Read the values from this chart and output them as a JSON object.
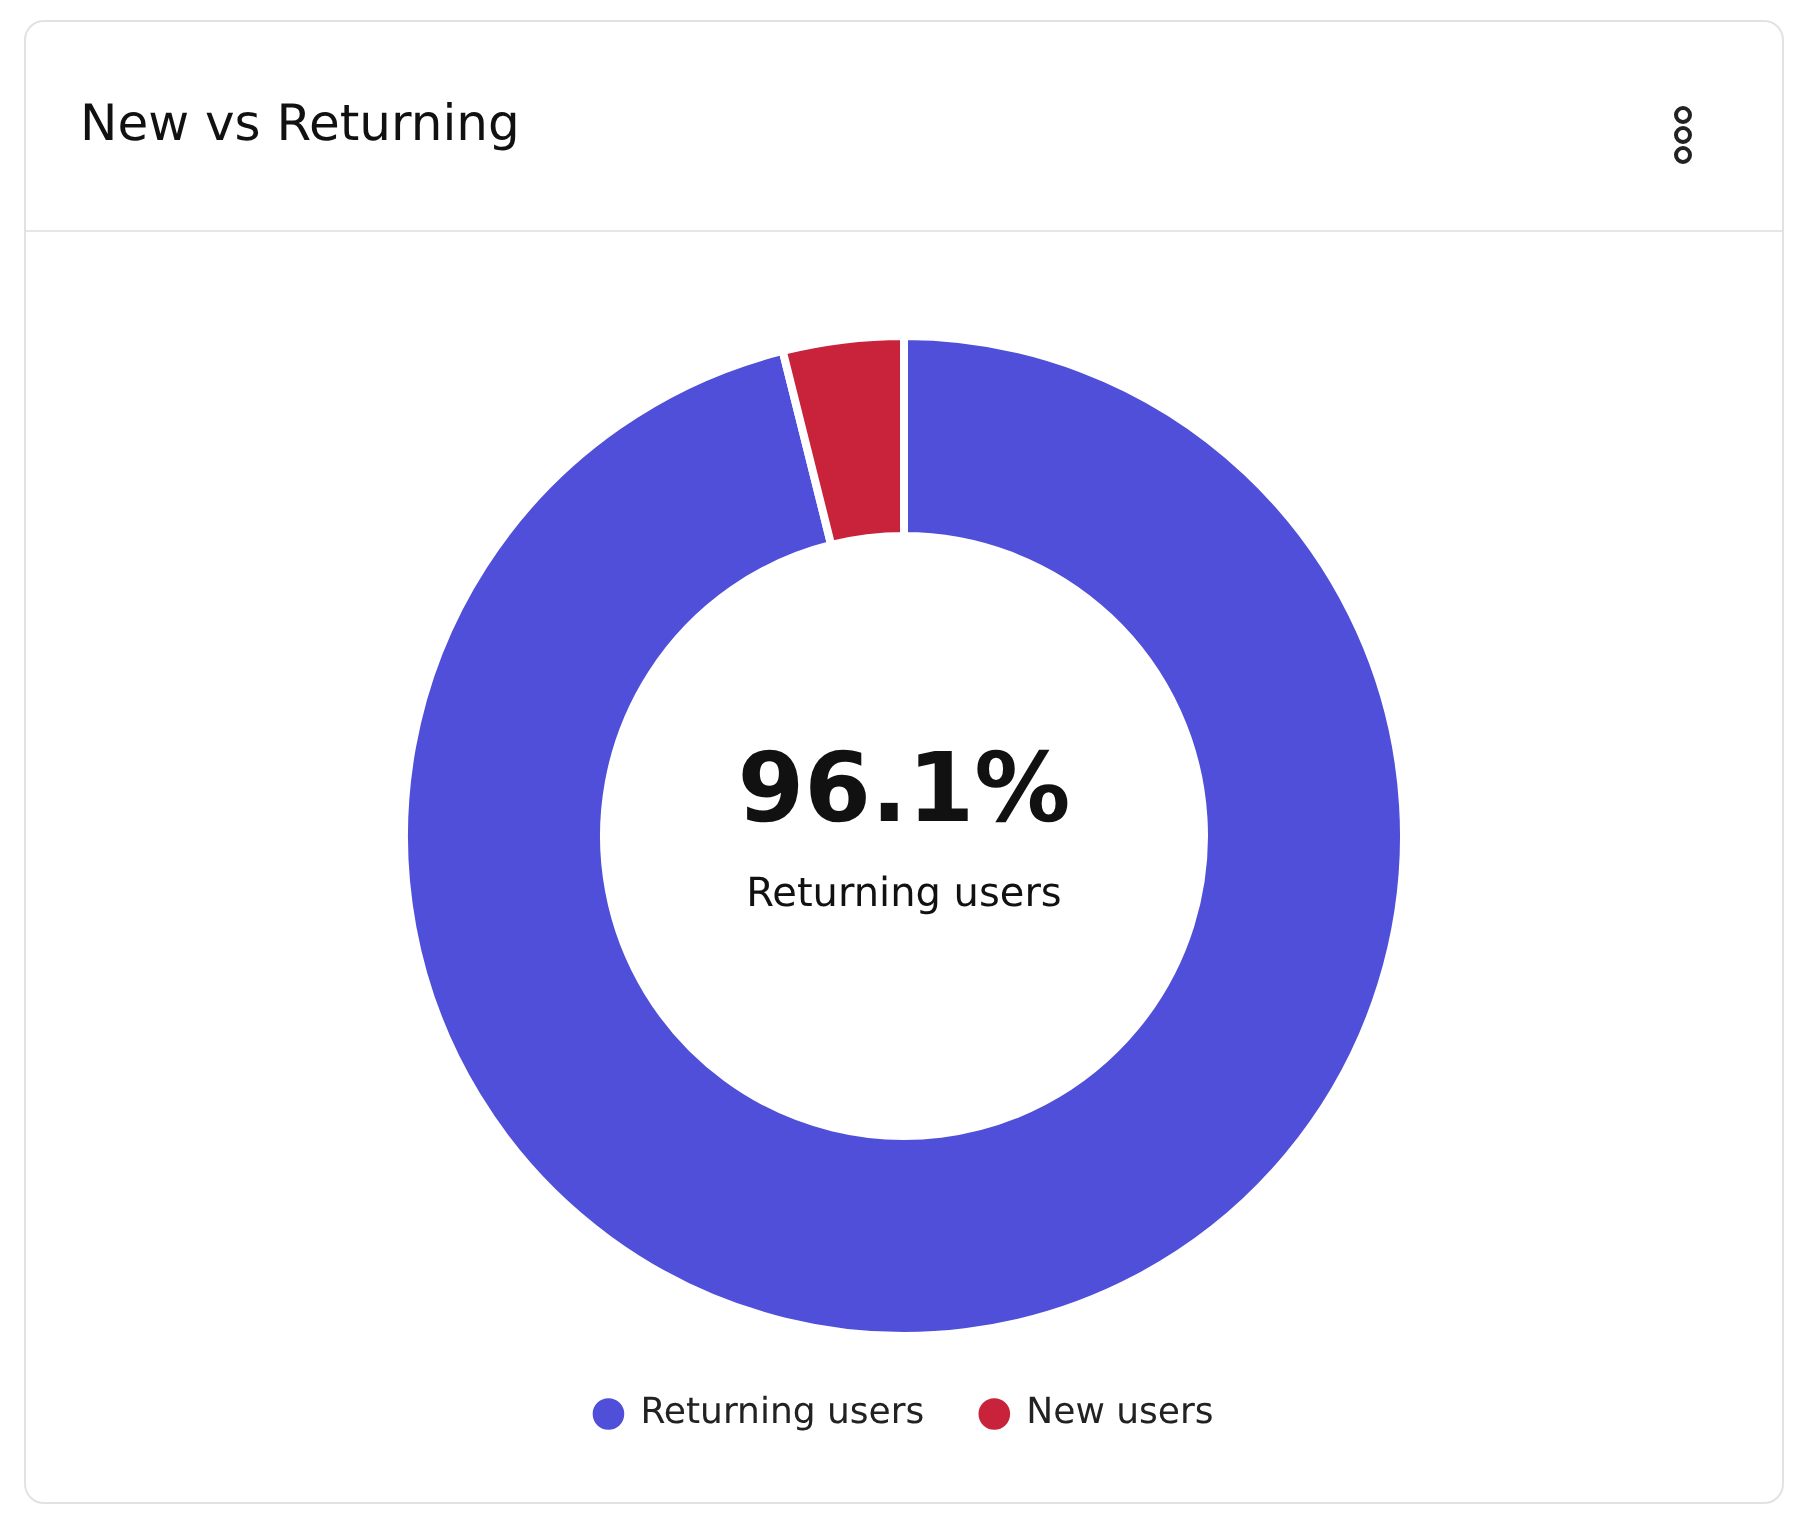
{
  "chart_data": {
    "type": "donut",
    "title": "New vs Returning",
    "categories": [
      "Returning users",
      "New users"
    ],
    "values": [
      96.1,
      3.9
    ],
    "colors": [
      "#4f4fd9",
      "#c8233b"
    ],
    "annotations": [
      "96.1%",
      "Returning users"
    ],
    "legend": "bottom"
  }
}
